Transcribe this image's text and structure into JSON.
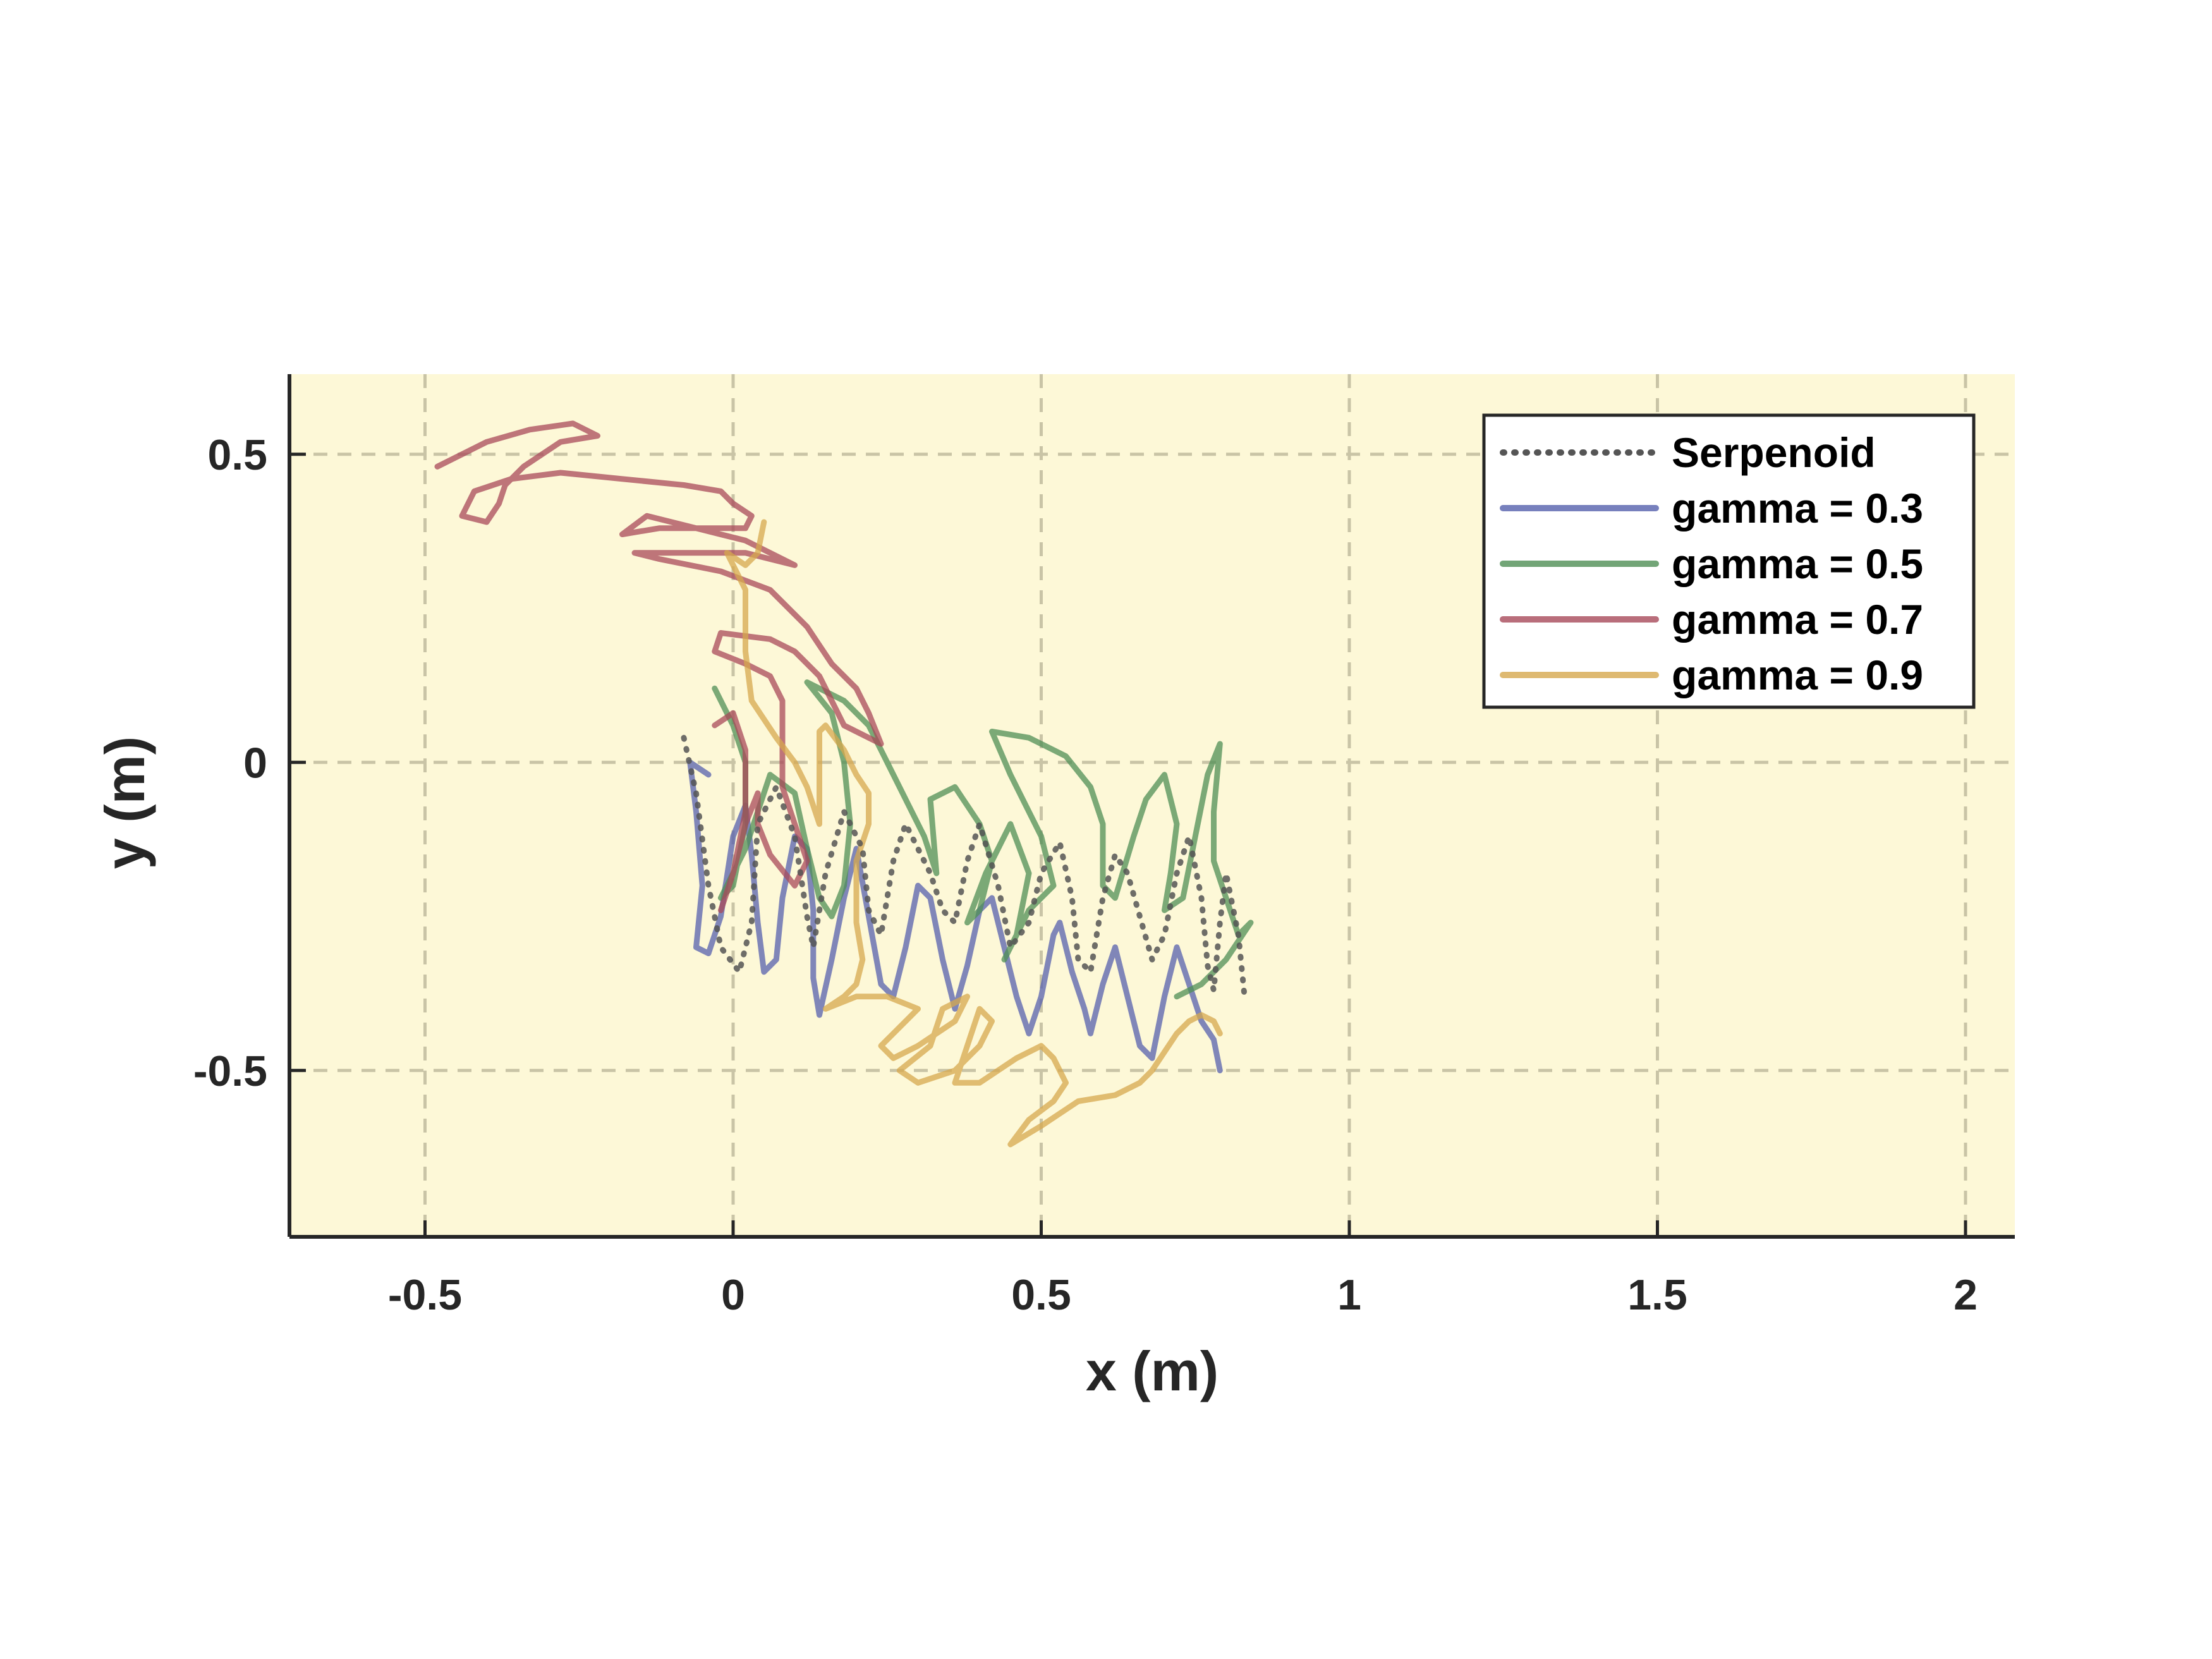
{
  "chart_data": {
    "type": "line",
    "xlabel": "x (m)",
    "ylabel": "y (m)",
    "xlim": [
      -0.72,
      2.08
    ],
    "ylim": [
      -0.77,
      0.63
    ],
    "xticks": [
      -0.5,
      0,
      0.5,
      1,
      1.5,
      2
    ],
    "xtick_labels": [
      "-0.5",
      "0",
      "0.5",
      "1",
      "1.5",
      "2"
    ],
    "yticks": [
      -0.5,
      0,
      0.5
    ],
    "ytick_labels": [
      "-0.5",
      "0",
      "0.5"
    ],
    "grid": true,
    "legend_position": "top-right",
    "background_color": "#fdf8d7",
    "series": [
      {
        "name": "Serpenoid",
        "color": "#555555",
        "style": "dotted",
        "points": [
          [
            -0.08,
            0.04
          ],
          [
            -0.06,
            -0.05
          ],
          [
            -0.04,
            -0.2
          ],
          [
            -0.02,
            -0.3
          ],
          [
            0.01,
            -0.34
          ],
          [
            0.03,
            -0.26
          ],
          [
            0.04,
            -0.1
          ],
          [
            0.07,
            -0.04
          ],
          [
            0.1,
            -0.12
          ],
          [
            0.12,
            -0.25
          ],
          [
            0.13,
            -0.3
          ],
          [
            0.15,
            -0.18
          ],
          [
            0.18,
            -0.08
          ],
          [
            0.21,
            -0.14
          ],
          [
            0.22,
            -0.24
          ],
          [
            0.24,
            -0.28
          ],
          [
            0.26,
            -0.16
          ],
          [
            0.28,
            -0.1
          ],
          [
            0.32,
            -0.18
          ],
          [
            0.34,
            -0.24
          ],
          [
            0.36,
            -0.26
          ],
          [
            0.38,
            -0.16
          ],
          [
            0.4,
            -0.1
          ],
          [
            0.43,
            -0.2
          ],
          [
            0.45,
            -0.3
          ],
          [
            0.48,
            -0.26
          ],
          [
            0.5,
            -0.18
          ],
          [
            0.53,
            -0.13
          ],
          [
            0.55,
            -0.22
          ],
          [
            0.56,
            -0.32
          ],
          [
            0.58,
            -0.34
          ],
          [
            0.6,
            -0.22
          ],
          [
            0.62,
            -0.15
          ],
          [
            0.64,
            -0.18
          ],
          [
            0.66,
            -0.25
          ],
          [
            0.68,
            -0.32
          ],
          [
            0.7,
            -0.28
          ],
          [
            0.72,
            -0.18
          ],
          [
            0.74,
            -0.12
          ],
          [
            0.76,
            -0.22
          ],
          [
            0.77,
            -0.33
          ],
          [
            0.78,
            -0.37
          ],
          [
            0.79,
            -0.26
          ],
          [
            0.8,
            -0.18
          ],
          [
            0.82,
            -0.28
          ],
          [
            0.83,
            -0.38
          ]
        ]
      },
      {
        "name": "gamma = 0.3",
        "color": "#5560ad",
        "style": "solid",
        "points": [
          [
            -0.04,
            -0.02
          ],
          [
            -0.07,
            0.0
          ],
          [
            -0.06,
            -0.08
          ],
          [
            -0.05,
            -0.2
          ],
          [
            -0.06,
            -0.3
          ],
          [
            -0.04,
            -0.31
          ],
          [
            -0.02,
            -0.25
          ],
          [
            0.0,
            -0.12
          ],
          [
            0.02,
            -0.07
          ],
          [
            0.03,
            -0.15
          ],
          [
            0.04,
            -0.26
          ],
          [
            0.05,
            -0.34
          ],
          [
            0.07,
            -0.32
          ],
          [
            0.08,
            -0.22
          ],
          [
            0.1,
            -0.12
          ],
          [
            0.12,
            -0.14
          ],
          [
            0.13,
            -0.24
          ],
          [
            0.13,
            -0.35
          ],
          [
            0.14,
            -0.41
          ],
          [
            0.16,
            -0.32
          ],
          [
            0.18,
            -0.22
          ],
          [
            0.2,
            -0.14
          ],
          [
            0.22,
            -0.25
          ],
          [
            0.24,
            -0.36
          ],
          [
            0.26,
            -0.38
          ],
          [
            0.28,
            -0.3
          ],
          [
            0.3,
            -0.2
          ],
          [
            0.32,
            -0.22
          ],
          [
            0.34,
            -0.32
          ],
          [
            0.36,
            -0.4
          ],
          [
            0.38,
            -0.33
          ],
          [
            0.4,
            -0.24
          ],
          [
            0.42,
            -0.22
          ],
          [
            0.44,
            -0.3
          ],
          [
            0.46,
            -0.38
          ],
          [
            0.48,
            -0.44
          ],
          [
            0.5,
            -0.38
          ],
          [
            0.52,
            -0.28
          ],
          [
            0.53,
            -0.26
          ],
          [
            0.55,
            -0.34
          ],
          [
            0.57,
            -0.4
          ],
          [
            0.58,
            -0.44
          ],
          [
            0.6,
            -0.36
          ],
          [
            0.62,
            -0.3
          ],
          [
            0.64,
            -0.38
          ],
          [
            0.66,
            -0.46
          ],
          [
            0.68,
            -0.48
          ],
          [
            0.7,
            -0.38
          ],
          [
            0.72,
            -0.3
          ],
          [
            0.74,
            -0.36
          ],
          [
            0.76,
            -0.42
          ],
          [
            0.78,
            -0.45
          ],
          [
            0.79,
            -0.5
          ]
        ]
      },
      {
        "name": "gamma = 0.5",
        "color": "#4f8f55",
        "style": "solid",
        "points": [
          [
            -0.03,
            0.12
          ],
          [
            0.0,
            0.06
          ],
          [
            0.02,
            0.0
          ],
          [
            0.02,
            -0.1
          ],
          [
            0.0,
            -0.2
          ],
          [
            -0.02,
            -0.22
          ],
          [
            0.02,
            -0.14
          ],
          [
            0.06,
            -0.02
          ],
          [
            0.1,
            -0.05
          ],
          [
            0.12,
            -0.14
          ],
          [
            0.14,
            -0.22
          ],
          [
            0.16,
            -0.25
          ],
          [
            0.18,
            -0.2
          ],
          [
            0.19,
            -0.1
          ],
          [
            0.18,
            0.0
          ],
          [
            0.16,
            0.08
          ],
          [
            0.12,
            0.13
          ],
          [
            0.18,
            0.1
          ],
          [
            0.22,
            0.06
          ],
          [
            0.25,
            0.0
          ],
          [
            0.28,
            -0.06
          ],
          [
            0.31,
            -0.12
          ],
          [
            0.33,
            -0.18
          ],
          [
            0.32,
            -0.06
          ],
          [
            0.36,
            -0.04
          ],
          [
            0.4,
            -0.1
          ],
          [
            0.42,
            -0.16
          ],
          [
            0.4,
            -0.24
          ],
          [
            0.38,
            -0.26
          ],
          [
            0.41,
            -0.18
          ],
          [
            0.45,
            -0.1
          ],
          [
            0.48,
            -0.18
          ],
          [
            0.46,
            -0.28
          ],
          [
            0.44,
            -0.32
          ],
          [
            0.48,
            -0.24
          ],
          [
            0.52,
            -0.2
          ],
          [
            0.5,
            -0.12
          ],
          [
            0.45,
            -0.02
          ],
          [
            0.42,
            0.05
          ],
          [
            0.48,
            0.04
          ],
          [
            0.54,
            0.01
          ],
          [
            0.58,
            -0.04
          ],
          [
            0.6,
            -0.1
          ],
          [
            0.6,
            -0.2
          ],
          [
            0.62,
            -0.22
          ],
          [
            0.65,
            -0.12
          ],
          [
            0.67,
            -0.06
          ],
          [
            0.7,
            -0.02
          ],
          [
            0.72,
            -0.1
          ],
          [
            0.71,
            -0.18
          ],
          [
            0.7,
            -0.24
          ],
          [
            0.73,
            -0.22
          ],
          [
            0.75,
            -0.12
          ],
          [
            0.77,
            -0.02
          ],
          [
            0.79,
            0.03
          ],
          [
            0.78,
            -0.08
          ],
          [
            0.78,
            -0.16
          ],
          [
            0.8,
            -0.22
          ],
          [
            0.82,
            -0.28
          ],
          [
            0.84,
            -0.26
          ],
          [
            0.8,
            -0.32
          ],
          [
            0.76,
            -0.36
          ],
          [
            0.72,
            -0.38
          ]
        ]
      },
      {
        "name": "gamma = 0.7",
        "color": "#a84a5a",
        "style": "solid",
        "points": [
          [
            -0.48,
            0.48
          ],
          [
            -0.4,
            0.52
          ],
          [
            -0.33,
            0.54
          ],
          [
            -0.26,
            0.55
          ],
          [
            -0.22,
            0.53
          ],
          [
            -0.28,
            0.52
          ],
          [
            -0.34,
            0.48
          ],
          [
            -0.37,
            0.45
          ],
          [
            -0.38,
            0.42
          ],
          [
            -0.4,
            0.39
          ],
          [
            -0.44,
            0.4
          ],
          [
            -0.42,
            0.44
          ],
          [
            -0.36,
            0.46
          ],
          [
            -0.28,
            0.47
          ],
          [
            -0.18,
            0.46
          ],
          [
            -0.08,
            0.45
          ],
          [
            -0.02,
            0.44
          ],
          [
            0.0,
            0.42
          ],
          [
            0.03,
            0.4
          ],
          [
            0.02,
            0.38
          ],
          [
            -0.04,
            0.38
          ],
          [
            -0.12,
            0.38
          ],
          [
            -0.18,
            0.37
          ],
          [
            -0.14,
            0.4
          ],
          [
            -0.06,
            0.38
          ],
          [
            0.02,
            0.36
          ],
          [
            0.08,
            0.33
          ],
          [
            0.1,
            0.32
          ],
          [
            0.02,
            0.34
          ],
          [
            -0.08,
            0.34
          ],
          [
            -0.16,
            0.34
          ],
          [
            -0.12,
            0.33
          ],
          [
            -0.02,
            0.31
          ],
          [
            0.06,
            0.28
          ],
          [
            0.12,
            0.22
          ],
          [
            0.16,
            0.16
          ],
          [
            0.2,
            0.12
          ],
          [
            0.22,
            0.08
          ],
          [
            0.24,
            0.03
          ],
          [
            0.22,
            0.04
          ],
          [
            0.18,
            0.06
          ],
          [
            0.16,
            0.1
          ],
          [
            0.14,
            0.14
          ],
          [
            0.1,
            0.18
          ],
          [
            0.06,
            0.2
          ],
          [
            -0.02,
            0.21
          ],
          [
            -0.03,
            0.18
          ],
          [
            0.02,
            0.16
          ],
          [
            0.06,
            0.14
          ],
          [
            0.08,
            0.1
          ],
          [
            0.08,
            0.04
          ],
          [
            0.08,
            -0.04
          ],
          [
            0.1,
            -0.1
          ],
          [
            0.12,
            -0.16
          ],
          [
            0.1,
            -0.2
          ],
          [
            0.06,
            -0.15
          ],
          [
            0.04,
            -0.1
          ],
          [
            0.04,
            -0.05
          ],
          [
            0.02,
            -0.1
          ],
          [
            0.0,
            -0.18
          ],
          [
            -0.02,
            -0.24
          ],
          [
            0.0,
            -0.18
          ],
          [
            0.02,
            -0.08
          ],
          [
            0.02,
            0.02
          ],
          [
            0.0,
            0.08
          ],
          [
            -0.03,
            0.06
          ]
        ]
      },
      {
        "name": "gamma = 0.9",
        "color": "#d6a84e",
        "style": "solid",
        "points": [
          [
            0.05,
            0.39
          ],
          [
            0.04,
            0.34
          ],
          [
            0.02,
            0.32
          ],
          [
            -0.01,
            0.34
          ],
          [
            0.02,
            0.28
          ],
          [
            0.02,
            0.18
          ],
          [
            0.03,
            0.1
          ],
          [
            0.07,
            0.04
          ],
          [
            0.1,
            0.0
          ],
          [
            0.12,
            -0.04
          ],
          [
            0.14,
            -0.1
          ],
          [
            0.14,
            0.0
          ],
          [
            0.14,
            0.05
          ],
          [
            0.15,
            0.06
          ],
          [
            0.18,
            0.02
          ],
          [
            0.2,
            -0.02
          ],
          [
            0.22,
            -0.05
          ],
          [
            0.22,
            -0.1
          ],
          [
            0.2,
            -0.16
          ],
          [
            0.2,
            -0.26
          ],
          [
            0.21,
            -0.32
          ],
          [
            0.2,
            -0.36
          ],
          [
            0.18,
            -0.38
          ],
          [
            0.15,
            -0.4
          ],
          [
            0.2,
            -0.38
          ],
          [
            0.25,
            -0.38
          ],
          [
            0.3,
            -0.4
          ],
          [
            0.26,
            -0.44
          ],
          [
            0.24,
            -0.46
          ],
          [
            0.26,
            -0.48
          ],
          [
            0.3,
            -0.46
          ],
          [
            0.36,
            -0.42
          ],
          [
            0.38,
            -0.38
          ],
          [
            0.34,
            -0.4
          ],
          [
            0.32,
            -0.46
          ],
          [
            0.27,
            -0.5
          ],
          [
            0.3,
            -0.52
          ],
          [
            0.36,
            -0.5
          ],
          [
            0.4,
            -0.46
          ],
          [
            0.42,
            -0.42
          ],
          [
            0.4,
            -0.4
          ],
          [
            0.38,
            -0.46
          ],
          [
            0.36,
            -0.52
          ],
          [
            0.4,
            -0.52
          ],
          [
            0.46,
            -0.48
          ],
          [
            0.5,
            -0.46
          ],
          [
            0.52,
            -0.48
          ],
          [
            0.54,
            -0.52
          ],
          [
            0.52,
            -0.55
          ],
          [
            0.48,
            -0.58
          ],
          [
            0.45,
            -0.62
          ],
          [
            0.5,
            -0.59
          ],
          [
            0.56,
            -0.55
          ],
          [
            0.62,
            -0.54
          ],
          [
            0.66,
            -0.52
          ],
          [
            0.68,
            -0.5
          ],
          [
            0.7,
            -0.47
          ],
          [
            0.72,
            -0.44
          ],
          [
            0.74,
            -0.42
          ],
          [
            0.76,
            -0.41
          ],
          [
            0.78,
            -0.42
          ],
          [
            0.79,
            -0.44
          ]
        ]
      }
    ]
  }
}
